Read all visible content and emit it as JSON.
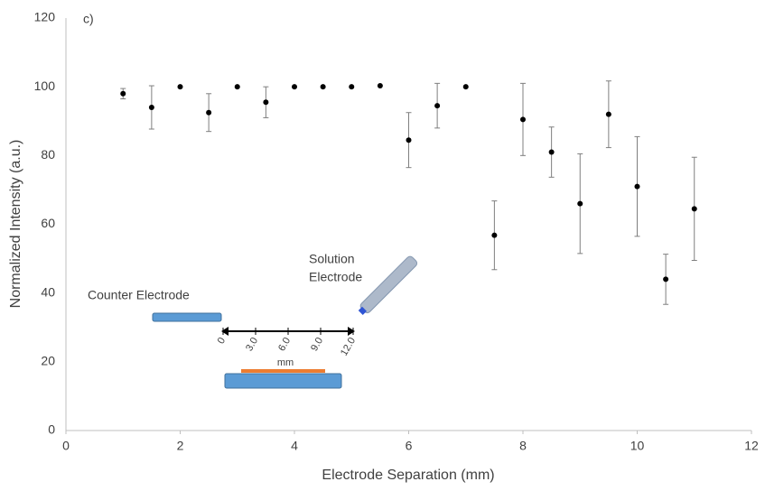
{
  "chart_data": {
    "type": "scatter",
    "panel_label": "c)",
    "xlabel": "Electrode Separation (mm)",
    "ylabel": "Normalized  Intensity (a.u.)",
    "x": [
      1,
      1.5,
      2,
      2.5,
      3,
      3.5,
      4,
      4.5,
      5,
      5.5,
      6,
      6.5,
      7,
      7.5,
      8,
      8.5,
      9,
      9.5,
      10,
      10.5,
      11
    ],
    "values": [
      98,
      94,
      100,
      92.5,
      100,
      95.5,
      100,
      100,
      100,
      100.3,
      84.5,
      94.5,
      100,
      56.8,
      90.5,
      81,
      66,
      92,
      71,
      44,
      64.5
    ],
    "error": [
      1.5,
      6.3,
      null,
      5.5,
      null,
      4.5,
      null,
      null,
      null,
      null,
      8,
      6.5,
      null,
      10,
      10.5,
      7.3,
      14.5,
      9.7,
      14.5,
      7.3,
      15
    ],
    "color": "#000000",
    "xlim": [
      0,
      12
    ],
    "xticks": [
      0,
      2,
      4,
      6,
      8,
      10,
      12
    ],
    "ylim": [
      0,
      120
    ],
    "yticks": [
      0,
      20,
      40,
      60,
      80,
      100,
      120
    ],
    "grid": false,
    "inset": {
      "counter_label": "Counter Electrode",
      "solution_label": [
        "Solution",
        "Electrode"
      ],
      "scale_labels": [
        "0",
        "3.0",
        "6.0",
        "9.0",
        "12.0"
      ],
      "scale_unit": "mm"
    }
  }
}
